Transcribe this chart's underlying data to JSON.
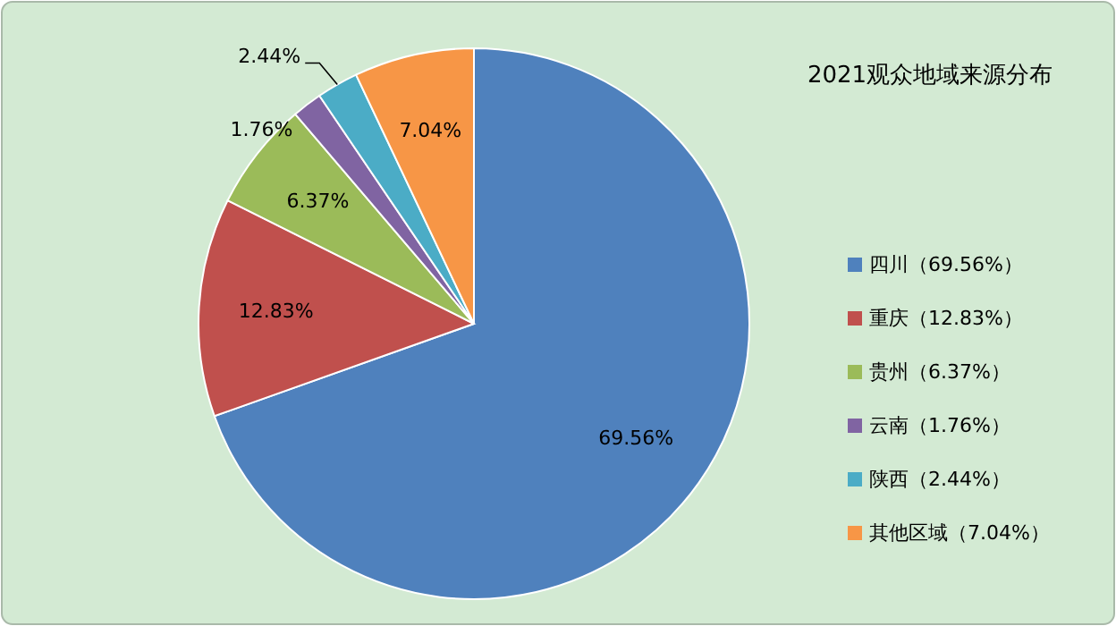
{
  "chart_data": {
    "type": "pie",
    "title": "2021观众地域来源分布",
    "categories": [
      "四川（69.56%）",
      "重庆（12.83%）",
      "贵州（6.37%）",
      "云南（1.76%）",
      "陕西（2.44%）",
      "其他区域（7.04%）"
    ],
    "values": [
      69.56,
      12.83,
      6.37,
      1.76,
      2.44,
      7.04
    ],
    "value_labels": [
      "69.56%",
      "12.83%",
      "6.37%",
      "1.76%",
      "2.44%",
      "7.04%"
    ],
    "colors": [
      "#4f81bd",
      "#c0504d",
      "#9bbb59",
      "#8064a2",
      "#4bacc6",
      "#f79646"
    ],
    "legend": "right"
  }
}
